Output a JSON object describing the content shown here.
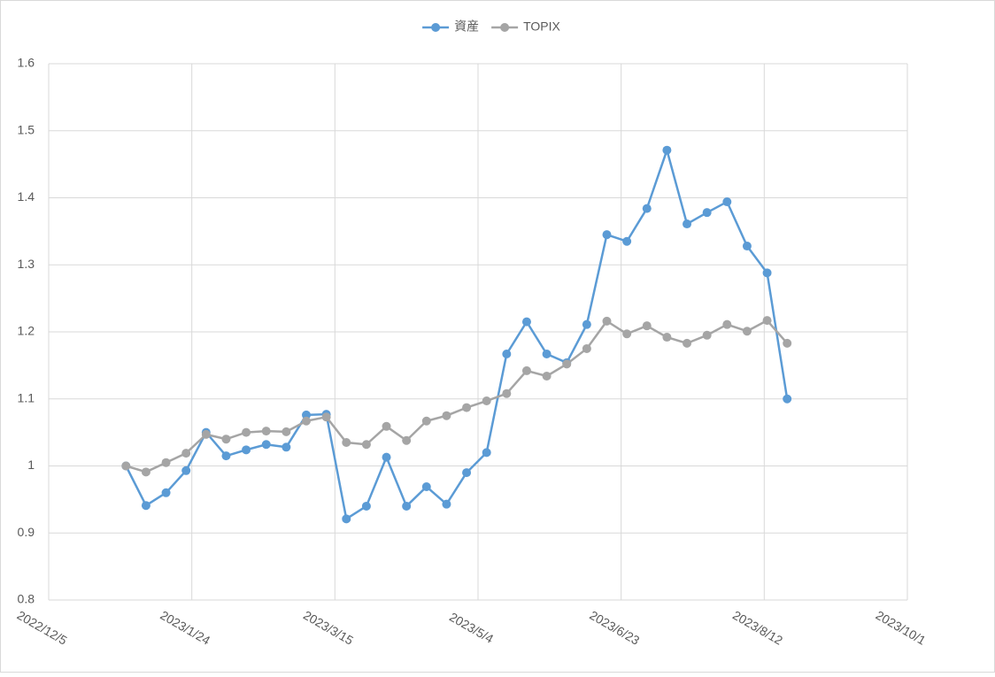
{
  "chart_data": {
    "type": "line",
    "x": [
      "2023/1/1",
      "2023/1/8",
      "2023/1/15",
      "2023/1/22",
      "2023/1/29",
      "2023/2/5",
      "2023/2/12",
      "2023/2/19",
      "2023/2/26",
      "2023/3/5",
      "2023/3/12",
      "2023/3/19",
      "2023/3/26",
      "2023/4/2",
      "2023/4/9",
      "2023/4/16",
      "2023/4/23",
      "2023/4/30",
      "2023/5/7",
      "2023/5/14",
      "2023/5/21",
      "2023/5/28",
      "2023/6/4",
      "2023/6/11",
      "2023/6/18",
      "2023/6/25",
      "2023/7/2",
      "2023/7/9",
      "2023/7/16",
      "2023/7/23",
      "2023/7/30",
      "2023/8/6",
      "2023/8/13",
      "2023/8/20"
    ],
    "series": [
      {
        "name": "資産",
        "color": "#5b9bd5",
        "values": [
          1.0,
          0.941,
          0.96,
          0.993,
          1.05,
          1.015,
          1.024,
          1.032,
          1.028,
          1.076,
          1.077,
          0.921,
          0.94,
          1.013,
          0.94,
          0.969,
          0.943,
          0.99,
          1.02,
          1.167,
          1.215,
          1.167,
          1.154,
          1.211,
          1.345,
          1.335,
          1.384,
          1.471,
          1.361,
          1.378,
          1.394,
          1.328,
          1.288,
          1.1
        ]
      },
      {
        "name": "TOPIX",
        "color": "#a5a5a5",
        "values": [
          1.0,
          0.991,
          1.005,
          1.019,
          1.047,
          1.04,
          1.05,
          1.052,
          1.051,
          1.067,
          1.073,
          1.035,
          1.032,
          1.059,
          1.038,
          1.067,
          1.075,
          1.087,
          1.097,
          1.108,
          1.142,
          1.134,
          1.152,
          1.175,
          1.216,
          1.197,
          1.209,
          1.192,
          1.183,
          1.195,
          1.211,
          1.201,
          1.217,
          1.183
        ]
      }
    ],
    "xlim": [
      "2022/12/5",
      "2023/10/1"
    ],
    "xticks": [
      "2022/12/5",
      "2023/1/24",
      "2023/3/15",
      "2023/5/4",
      "2023/6/23",
      "2023/8/12",
      "2023/10/1"
    ],
    "ylim": [
      0.8,
      1.6
    ],
    "yticks": [
      0.8,
      0.9,
      1,
      1.1,
      1.2,
      1.3,
      1.4,
      1.5,
      1.6
    ],
    "grid": true,
    "legend": "top"
  }
}
